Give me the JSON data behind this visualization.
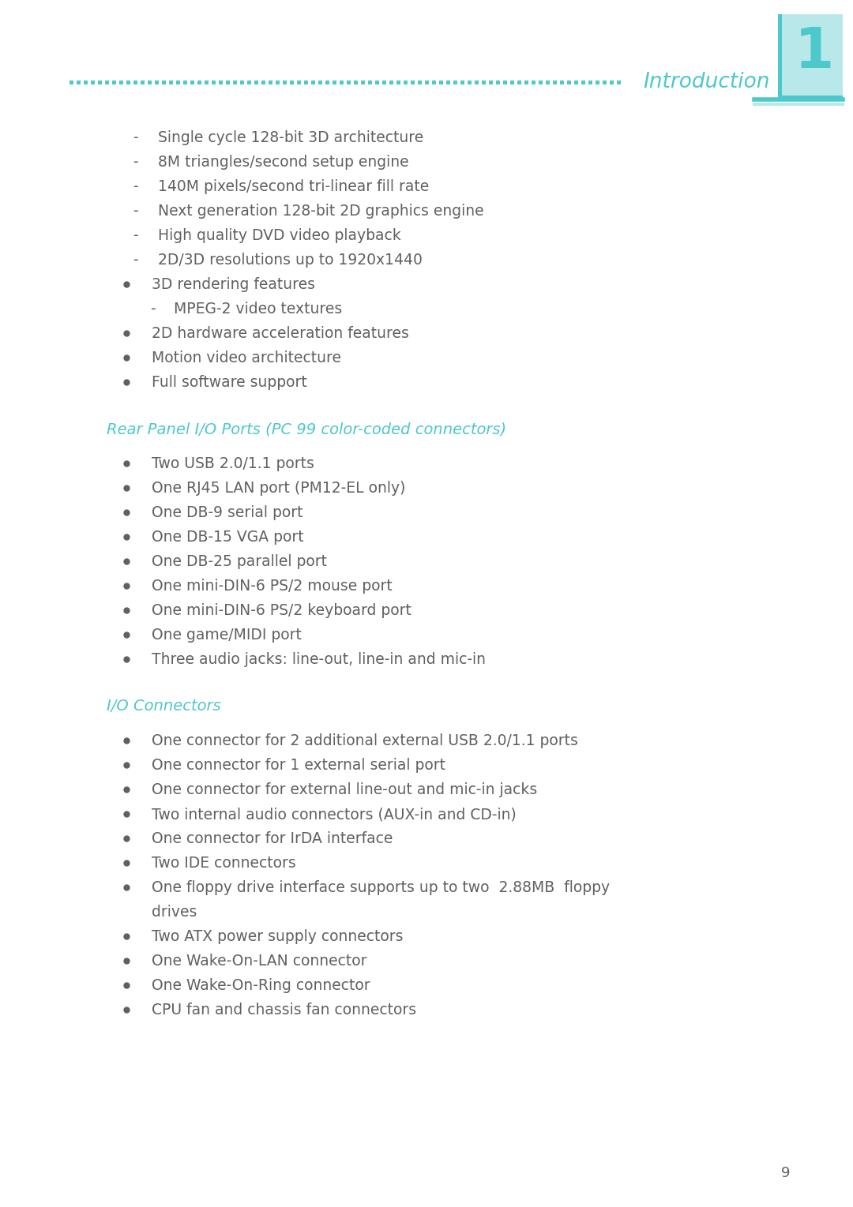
{
  "bg_color": "#ffffff",
  "text_color": "#606060",
  "cyan_color": "#4dc8cb",
  "light_cyan": "#b8e8ea",
  "page_number": "9",
  "chapter_number": "1",
  "chapter_title": "Introduction",
  "dash_items": [
    "Single cycle 128-bit 3D architecture",
    "8M triangles/second setup engine",
    "140M pixels/second tri-linear fill rate",
    "Next generation 128-bit 2D graphics engine",
    "High quality DVD video playback",
    "2D/3D resolutions up to 1920x1440"
  ],
  "bullet_items_1": [
    "3D rendering features",
    "2D hardware acceleration features",
    "Motion video architecture",
    "Full software support"
  ],
  "sub_dash_item_1": "MPEG-2 video textures",
  "section2_title": "Rear Panel I/O Ports (PC 99 color-coded connectors)",
  "bullet_items_2": [
    "Two USB 2.0/1.1 ports",
    "One RJ45 LAN port (PM12-EL only)",
    "One DB-9 serial port",
    "One DB-15 VGA port",
    "One DB-25 parallel port",
    "One mini-DIN-6 PS/2 mouse port",
    "One mini-DIN-6 PS/2 keyboard port",
    "One game/MIDI port",
    "Three audio jacks: line-out, line-in and mic-in"
  ],
  "section3_title": "I/O Connectors",
  "bullet_items_3_line1": [
    "One connector for 2 additional external USB 2.0/1.1 ports",
    "One connector for 1 external serial port",
    "One connector for external line-out and mic-in jacks",
    "Two internal audio connectors (AUX-in and CD-in)",
    "One connector for IrDA interface",
    "Two IDE connectors"
  ],
  "floppy_line1": "One floppy drive interface supports up to two  2.88MB  floppy",
  "floppy_line2": "drives",
  "bullet_items_3_line2": [
    "Two ATX power supply connectors",
    "One Wake-On-LAN connector",
    "One Wake-On-Ring connector",
    "CPU fan and chassis fan connectors"
  ]
}
